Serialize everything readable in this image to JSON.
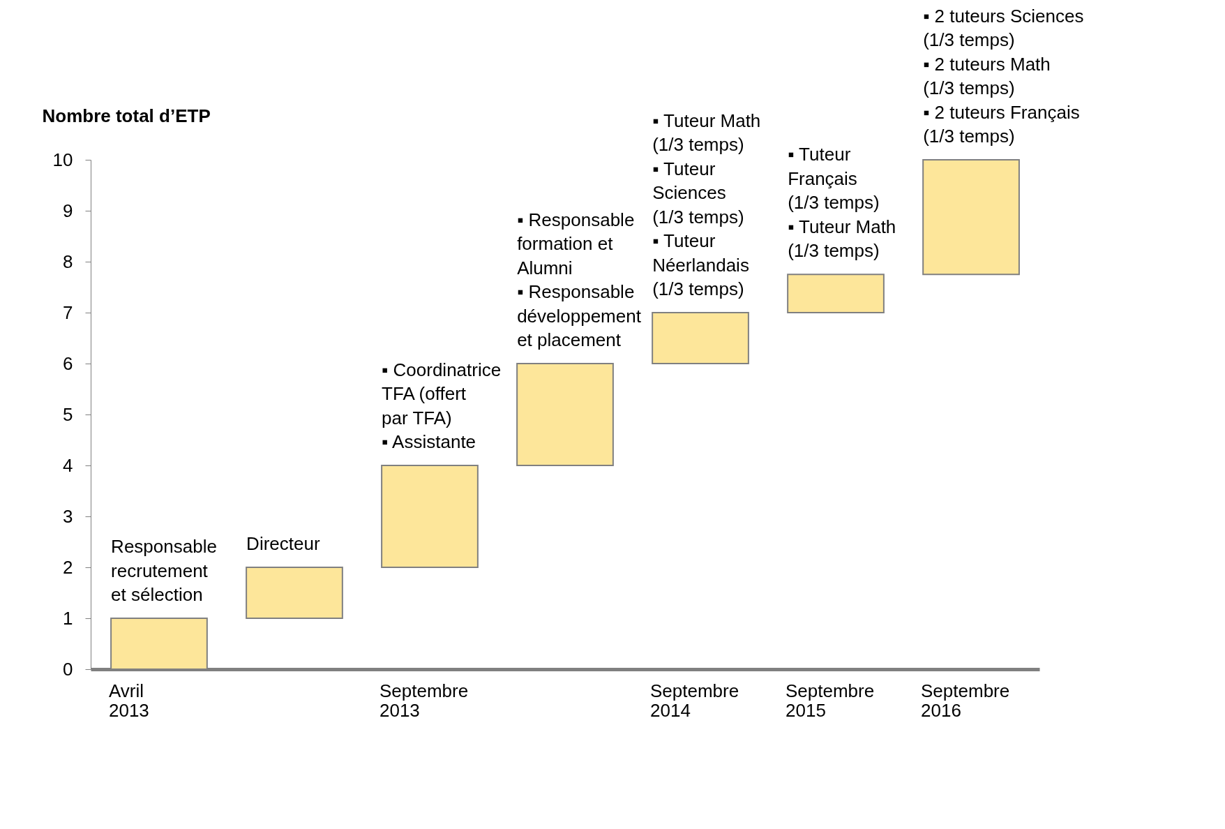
{
  "chart_data": {
    "type": "bar",
    "ylabel": "Nombre total d’ETP",
    "categories": [
      "Avril 2013",
      null,
      "Septembre 2013",
      null,
      "Septembre 2014",
      "Septembre 2015",
      "Septembre 2016"
    ],
    "base": [
      0,
      1,
      2,
      4,
      6,
      7,
      7.75
    ],
    "values": [
      1,
      1,
      2,
      2,
      1,
      0.75,
      2.25
    ],
    "color": "#fde69a",
    "ylim": [
      0,
      10
    ],
    "yticks": [
      0,
      1,
      2,
      3,
      4,
      5,
      6,
      7,
      8,
      9,
      10
    ],
    "grid": false,
    "annotations": [
      "Responsable\nrecrutement\net sélection",
      "Directeur",
      "▪  Coordinatrice\n    TFA (offert\n    par TFA)\n▪  Assistante",
      "▪  Responsable\n    formation et\n    Alumni\n▪  Responsable\n    développement\n    et placement",
      "▪  Tuteur Math\n    (1/3 temps)\n▪  Tuteur\n    Sciences\n    (1/3 temps)\n▪  Tuteur\n    Néerlandais\n    (1/3 temps)",
      "▪  Tuteur\n    Français\n    (1/3 temps)\n▪  Tuteur Math\n    (1/3 temps)",
      "▪  2 tuteurs Sciences\n    (1/3 temps)\n▪  2 tuteurs Math\n    (1/3 temps)\n▪  2 tuteurs Français\n    (1/3 temps)"
    ]
  }
}
